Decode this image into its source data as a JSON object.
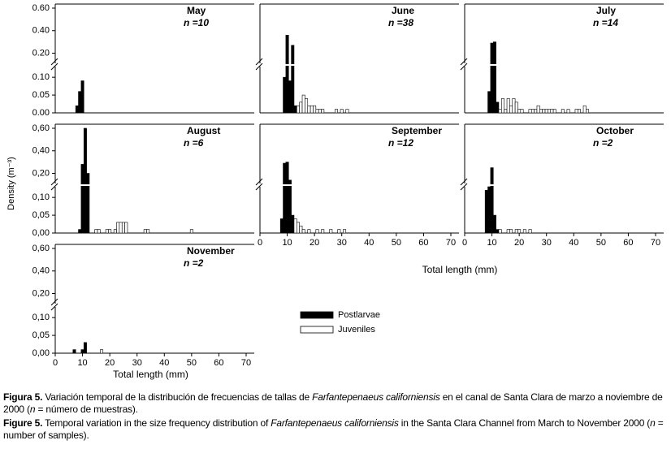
{
  "chart_data": [
    {
      "type": "bar",
      "title": "May",
      "subtitle": "n =10",
      "xlim": [
        0,
        70
      ],
      "ylim_upper": [
        0.11,
        0.6
      ],
      "ylim_lower": [
        0,
        0.13
      ],
      "yticks": [
        {
          "value": 0.6,
          "label": "0.60"
        },
        {
          "value": 0.4,
          "label": "0.40"
        },
        {
          "value": 0.2,
          "label": "0.20"
        },
        {
          "value": 0.1,
          "label": "0.10"
        },
        {
          "value": 0.05,
          "label": "0.05"
        },
        {
          "value": 0,
          "label": "0.00"
        }
      ],
      "series": [
        {
          "color": "#000000",
          "x": [
            8,
            9,
            10
          ],
          "values": [
            0.02,
            0.06,
            0.09
          ]
        }
      ]
    },
    {
      "type": "bar",
      "title": "June",
      "subtitle": "n =38",
      "xlim": [
        0,
        70
      ],
      "ylim_upper": [
        0.11,
        0.6
      ],
      "ylim_lower": [
        0,
        0.13
      ],
      "series": [
        {
          "color": "#000000",
          "x": [
            9,
            10,
            11,
            12,
            13
          ],
          "values": [
            0.1,
            0.36,
            0.09,
            0.27,
            0.02
          ]
        },
        {
          "color": "#ffffff",
          "x": [
            14,
            15,
            16,
            17,
            18,
            19,
            20,
            21,
            22,
            23,
            28,
            30,
            32
          ],
          "values": [
            0.02,
            0.03,
            0.05,
            0.04,
            0.02,
            0.02,
            0.02,
            0.01,
            0.01,
            0.01,
            0.01,
            0.01,
            0.01
          ]
        }
      ]
    },
    {
      "type": "bar",
      "title": "July",
      "subtitle": "n =14",
      "xlim": [
        0,
        70
      ],
      "ylim_upper": [
        0.11,
        0.6
      ],
      "ylim_lower": [
        0,
        0.13
      ],
      "series": [
        {
          "color": "#000000",
          "x": [
            9,
            10,
            11,
            12
          ],
          "values": [
            0.06,
            0.29,
            0.3,
            0.03
          ]
        },
        {
          "color": "#ffffff",
          "x": [
            13,
            14,
            15,
            16,
            17,
            18,
            19,
            20,
            21,
            24,
            25,
            26,
            27,
            28,
            29,
            30,
            31,
            32,
            33,
            36,
            38,
            41,
            42,
            44,
            45
          ],
          "values": [
            0.01,
            0.04,
            0.01,
            0.04,
            0.02,
            0.04,
            0.03,
            0.01,
            0.01,
            0.01,
            0.01,
            0.01,
            0.02,
            0.01,
            0.01,
            0.01,
            0.01,
            0.01,
            0.01,
            0.01,
            0.01,
            0.01,
            0.01,
            0.02,
            0.01
          ]
        }
      ]
    },
    {
      "type": "bar",
      "title": "August",
      "subtitle": "n =6",
      "y_label": "Density (m⁻³)",
      "xlim": [
        0,
        70
      ],
      "ylim_upper": [
        0.11,
        0.6
      ],
      "ylim_lower": [
        0,
        0.13
      ],
      "yticks": [
        {
          "value": 0.6,
          "label": "0,60"
        },
        {
          "value": 0.4,
          "label": "0,40"
        },
        {
          "value": 0.2,
          "label": "0,20"
        },
        {
          "value": 0.1,
          "label": "0,10"
        },
        {
          "value": 0.05,
          "label": "0,05"
        },
        {
          "value": 0,
          "label": "0,00"
        }
      ],
      "series": [
        {
          "color": "#000000",
          "x": [
            9,
            10,
            11,
            12
          ],
          "values": [
            0.01,
            0.28,
            0.6,
            0.2
          ]
        },
        {
          "color": "#ffffff",
          "x": [
            15,
            16,
            19,
            20,
            22,
            23,
            24,
            25,
            26,
            33,
            34,
            50
          ],
          "values": [
            0.01,
            0.01,
            0.01,
            0.01,
            0.01,
            0.03,
            0.03,
            0.03,
            0.03,
            0.01,
            0.01,
            0.01
          ]
        }
      ]
    },
    {
      "type": "bar",
      "title": "September",
      "subtitle": "n =12",
      "x_label": "Total length (mm)",
      "xlim": [
        0,
        70
      ],
      "xticks": [
        0,
        10,
        20,
        30,
        40,
        50,
        60,
        70
      ],
      "ylim_upper": [
        0.11,
        0.6
      ],
      "ylim_lower": [
        0,
        0.13
      ],
      "series": [
        {
          "color": "#000000",
          "x": [
            8,
            9,
            10,
            11,
            12
          ],
          "values": [
            0.04,
            0.29,
            0.3,
            0.14,
            0.05
          ]
        },
        {
          "color": "#ffffff",
          "x": [
            13,
            14,
            15,
            16,
            18,
            21,
            23,
            26,
            29,
            31
          ],
          "values": [
            0.04,
            0.03,
            0.02,
            0.01,
            0.01,
            0.01,
            0.01,
            0.01,
            0.01,
            0.01
          ]
        }
      ]
    },
    {
      "type": "bar",
      "title": "October",
      "subtitle": "n =2",
      "xlim": [
        0,
        70
      ],
      "xticks": [
        0,
        10,
        20,
        30,
        40,
        50,
        60,
        70
      ],
      "ylim_upper": [
        0.11,
        0.6
      ],
      "ylim_lower": [
        0,
        0.13
      ],
      "series": [
        {
          "color": "#000000",
          "x": [
            8,
            9,
            10,
            11,
            12
          ],
          "values": [
            0.12,
            0.13,
            0.25,
            0.05,
            0.01
          ]
        },
        {
          "color": "#ffffff",
          "x": [
            13,
            16,
            17,
            19,
            20,
            22,
            24
          ],
          "values": [
            0.01,
            0.01,
            0.01,
            0.01,
            0.01,
            0.01,
            0.01
          ]
        }
      ]
    },
    {
      "type": "bar",
      "title": "November",
      "subtitle": "n =2",
      "x_label": "Total length (mm)",
      "xlim": [
        0,
        70
      ],
      "xticks": [
        0,
        10,
        20,
        30,
        40,
        50,
        60,
        70
      ],
      "ylim_upper": [
        0.11,
        0.6
      ],
      "ylim_lower": [
        0,
        0.13
      ],
      "yticks": [
        {
          "value": 0.6,
          "label": "0,60"
        },
        {
          "value": 0.4,
          "label": "0,40"
        },
        {
          "value": 0.2,
          "label": "0,20"
        },
        {
          "value": 0.1,
          "label": "0,10"
        },
        {
          "value": 0.05,
          "label": "0,05"
        },
        {
          "value": 0,
          "label": "0,00"
        }
      ],
      "series": [
        {
          "name": "Postlarvae",
          "color": "#000000",
          "x": [
            7,
            10,
            11
          ],
          "values": [
            0.01,
            0.01,
            0.03
          ]
        },
        {
          "name": "Juveniles",
          "color": "#ffffff",
          "x": [
            17
          ],
          "values": [
            0.01
          ]
        }
      ]
    }
  ],
  "caption": {
    "es": [
      "Figura 5.",
      "Variación temporal de la distribución de frecuencias de tallas de ",
      "Farfantepenaeus californiensis",
      " en el canal de Santa Clara de marzo a noviembre de 2000 (",
      "n",
      " = número de muestras)."
    ],
    "en": [
      "Figure 5.",
      "Temporal variation in the size frequency distribution of ",
      "Farfantepenaeus californiensis",
      " in the Santa Clara Channel from March to November 2000 (",
      "n",
      " = number of samples)."
    ]
  }
}
